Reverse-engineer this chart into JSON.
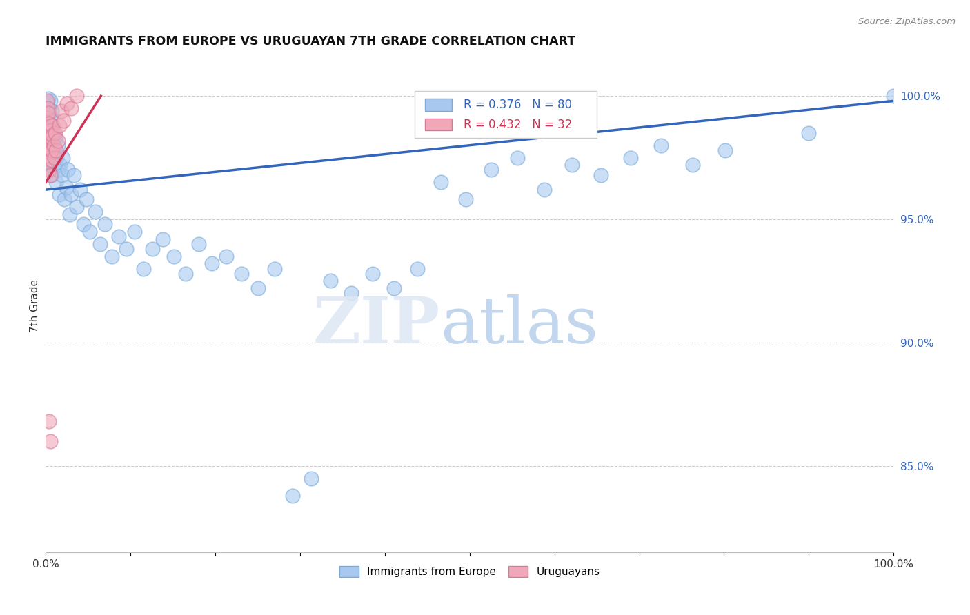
{
  "title": "IMMIGRANTS FROM EUROPE VS URUGUAYAN 7TH GRADE CORRELATION CHART",
  "source": "Source: ZipAtlas.com",
  "ylabel": "7th Grade",
  "watermark_zip": "ZIP",
  "watermark_atlas": "atlas",
  "blue_label": "Immigrants from Europe",
  "pink_label": "Uruguayans",
  "blue_R": 0.376,
  "blue_N": 80,
  "pink_R": 0.432,
  "pink_N": 32,
  "blue_color": "#a8c8f0",
  "pink_color": "#f0a8b8",
  "blue_edge_color": "#7aaad8",
  "pink_edge_color": "#d87898",
  "blue_line_color": "#3366bb",
  "pink_line_color": "#cc3355",
  "yticks": [
    0.85,
    0.9,
    0.95,
    1.0
  ],
  "ytick_labels": [
    "85.0%",
    "90.0%",
    "95.0%",
    "100.0%"
  ],
  "ylim_min": 0.815,
  "ylim_max": 1.015,
  "xlim_min": 0.0,
  "xlim_max": 1.0,
  "blue_x": [
    0.001,
    0.001,
    0.002,
    0.002,
    0.003,
    0.003,
    0.003,
    0.004,
    0.004,
    0.004,
    0.005,
    0.005,
    0.005,
    0.006,
    0.006,
    0.007,
    0.007,
    0.008,
    0.008,
    0.009,
    0.009,
    0.01,
    0.011,
    0.012,
    0.013,
    0.014,
    0.015,
    0.016,
    0.017,
    0.019,
    0.02,
    0.022,
    0.024,
    0.026,
    0.028,
    0.03,
    0.033,
    0.036,
    0.04,
    0.044,
    0.048,
    0.052,
    0.058,
    0.064,
    0.07,
    0.078,
    0.086,
    0.095,
    0.105,
    0.115,
    0.126,
    0.138,
    0.151,
    0.165,
    0.18,
    0.196,
    0.213,
    0.231,
    0.25,
    0.27,
    0.291,
    0.313,
    0.336,
    0.36,
    0.385,
    0.411,
    0.438,
    0.466,
    0.495,
    0.525,
    0.556,
    0.588,
    0.621,
    0.655,
    0.69,
    0.726,
    0.763,
    0.801,
    0.9,
    1.0
  ],
  "blue_y": [
    0.997,
    0.984,
    0.993,
    0.978,
    0.999,
    0.988,
    0.975,
    0.995,
    0.981,
    0.97,
    0.998,
    0.985,
    0.973,
    0.991,
    0.977,
    0.994,
    0.968,
    0.988,
    0.974,
    0.985,
    0.971,
    0.979,
    0.983,
    0.965,
    0.975,
    0.98,
    0.97,
    0.96,
    0.972,
    0.968,
    0.975,
    0.958,
    0.963,
    0.97,
    0.952,
    0.96,
    0.968,
    0.955,
    0.962,
    0.948,
    0.958,
    0.945,
    0.953,
    0.94,
    0.948,
    0.935,
    0.943,
    0.938,
    0.945,
    0.93,
    0.938,
    0.942,
    0.935,
    0.928,
    0.94,
    0.932,
    0.935,
    0.928,
    0.922,
    0.93,
    0.838,
    0.845,
    0.925,
    0.92,
    0.928,
    0.922,
    0.93,
    0.965,
    0.958,
    0.97,
    0.975,
    0.962,
    0.972,
    0.968,
    0.975,
    0.98,
    0.972,
    0.978,
    0.985,
    1.0
  ],
  "pink_x": [
    0.001,
    0.001,
    0.002,
    0.002,
    0.002,
    0.003,
    0.003,
    0.003,
    0.004,
    0.004,
    0.004,
    0.005,
    0.005,
    0.005,
    0.006,
    0.006,
    0.007,
    0.007,
    0.008,
    0.009,
    0.01,
    0.011,
    0.012,
    0.014,
    0.016,
    0.018,
    0.021,
    0.025,
    0.03,
    0.036,
    0.004,
    0.005
  ],
  "pink_y": [
    0.998,
    0.991,
    0.995,
    0.985,
    0.978,
    0.993,
    0.982,
    0.975,
    0.989,
    0.979,
    0.97,
    0.986,
    0.977,
    0.968,
    0.983,
    0.974,
    0.988,
    0.978,
    0.984,
    0.98,
    0.975,
    0.985,
    0.978,
    0.982,
    0.988,
    0.994,
    0.99,
    0.997,
    0.995,
    1.0,
    0.868,
    0.86
  ],
  "blue_trend_x": [
    0.0,
    1.0
  ],
  "blue_trend_y": [
    0.962,
    0.998
  ],
  "pink_trend_x": [
    0.0,
    0.065
  ],
  "pink_trend_y": [
    0.965,
    1.0
  ]
}
